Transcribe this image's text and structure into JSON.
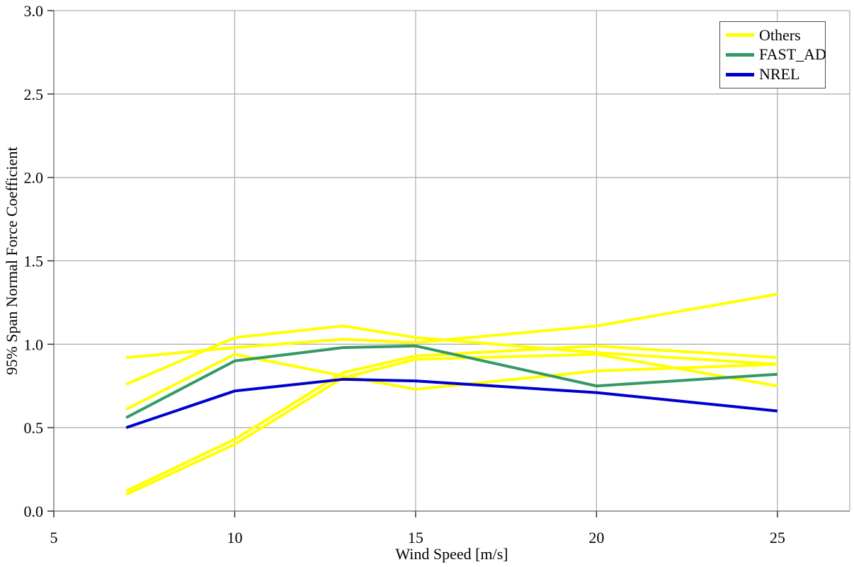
{
  "chart_data": {
    "type": "line",
    "title": "",
    "xlabel": "Wind Speed [m/s]",
    "ylabel": "95% Span Normal Force Coefficient",
    "xlim": [
      5,
      27
    ],
    "ylim": [
      0,
      3
    ],
    "xticks": [
      5,
      10,
      15,
      20,
      25
    ],
    "xtick_labels": [
      "5",
      "10",
      "15",
      "20",
      "25"
    ],
    "yticks": [
      0,
      0.5,
      1,
      1.5,
      2,
      2.5,
      3
    ],
    "ytick_labels": [
      "0.0",
      "0.5",
      "1.0",
      "1.5",
      "2.0",
      "2.5",
      "3.0"
    ],
    "grid": true,
    "legend_position": "top-right",
    "x": [
      7,
      10,
      13,
      15,
      20,
      25
    ],
    "series": [
      {
        "name": "Others",
        "group": "Others",
        "color": "#ffff00",
        "values": [
          0.92,
          0.98,
          1.03,
          1.01,
          1.11,
          1.3
        ]
      },
      {
        "name": "Others",
        "group": "Others",
        "color": "#ffff00",
        "values": [
          0.76,
          1.04,
          1.11,
          1.04,
          0.95,
          0.88
        ]
      },
      {
        "name": "Others",
        "group": "Others",
        "color": "#ffff00",
        "values": [
          0.61,
          0.94,
          0.81,
          0.73,
          0.84,
          0.88
        ]
      },
      {
        "name": "Others",
        "group": "Others",
        "color": "#ffff00",
        "values": [
          0.12,
          0.43,
          0.83,
          0.93,
          0.99,
          0.92
        ]
      },
      {
        "name": "Others",
        "group": "Others",
        "color": "#ffff00",
        "values": [
          0.1,
          0.4,
          0.8,
          0.91,
          0.94,
          0.75
        ]
      },
      {
        "name": "FAST_AD",
        "group": "FAST_AD",
        "color": "#339966",
        "values": [
          0.56,
          0.9,
          0.98,
          0.99,
          0.75,
          0.82
        ]
      },
      {
        "name": "NREL",
        "group": "NREL",
        "color": "#0000cc",
        "values": [
          0.5,
          0.72,
          0.79,
          0.78,
          0.71,
          0.6
        ]
      }
    ],
    "legend": [
      {
        "label": "Others",
        "color": "#ffff00"
      },
      {
        "label": "FAST_AD",
        "color": "#339966"
      },
      {
        "label": "NREL",
        "color": "#0000cc"
      }
    ],
    "colors": {
      "background": "#ffffff",
      "gridline": "#b0b0b0",
      "axis_line": "#808080",
      "tick_mark": "#333333",
      "text": "#000000"
    }
  }
}
